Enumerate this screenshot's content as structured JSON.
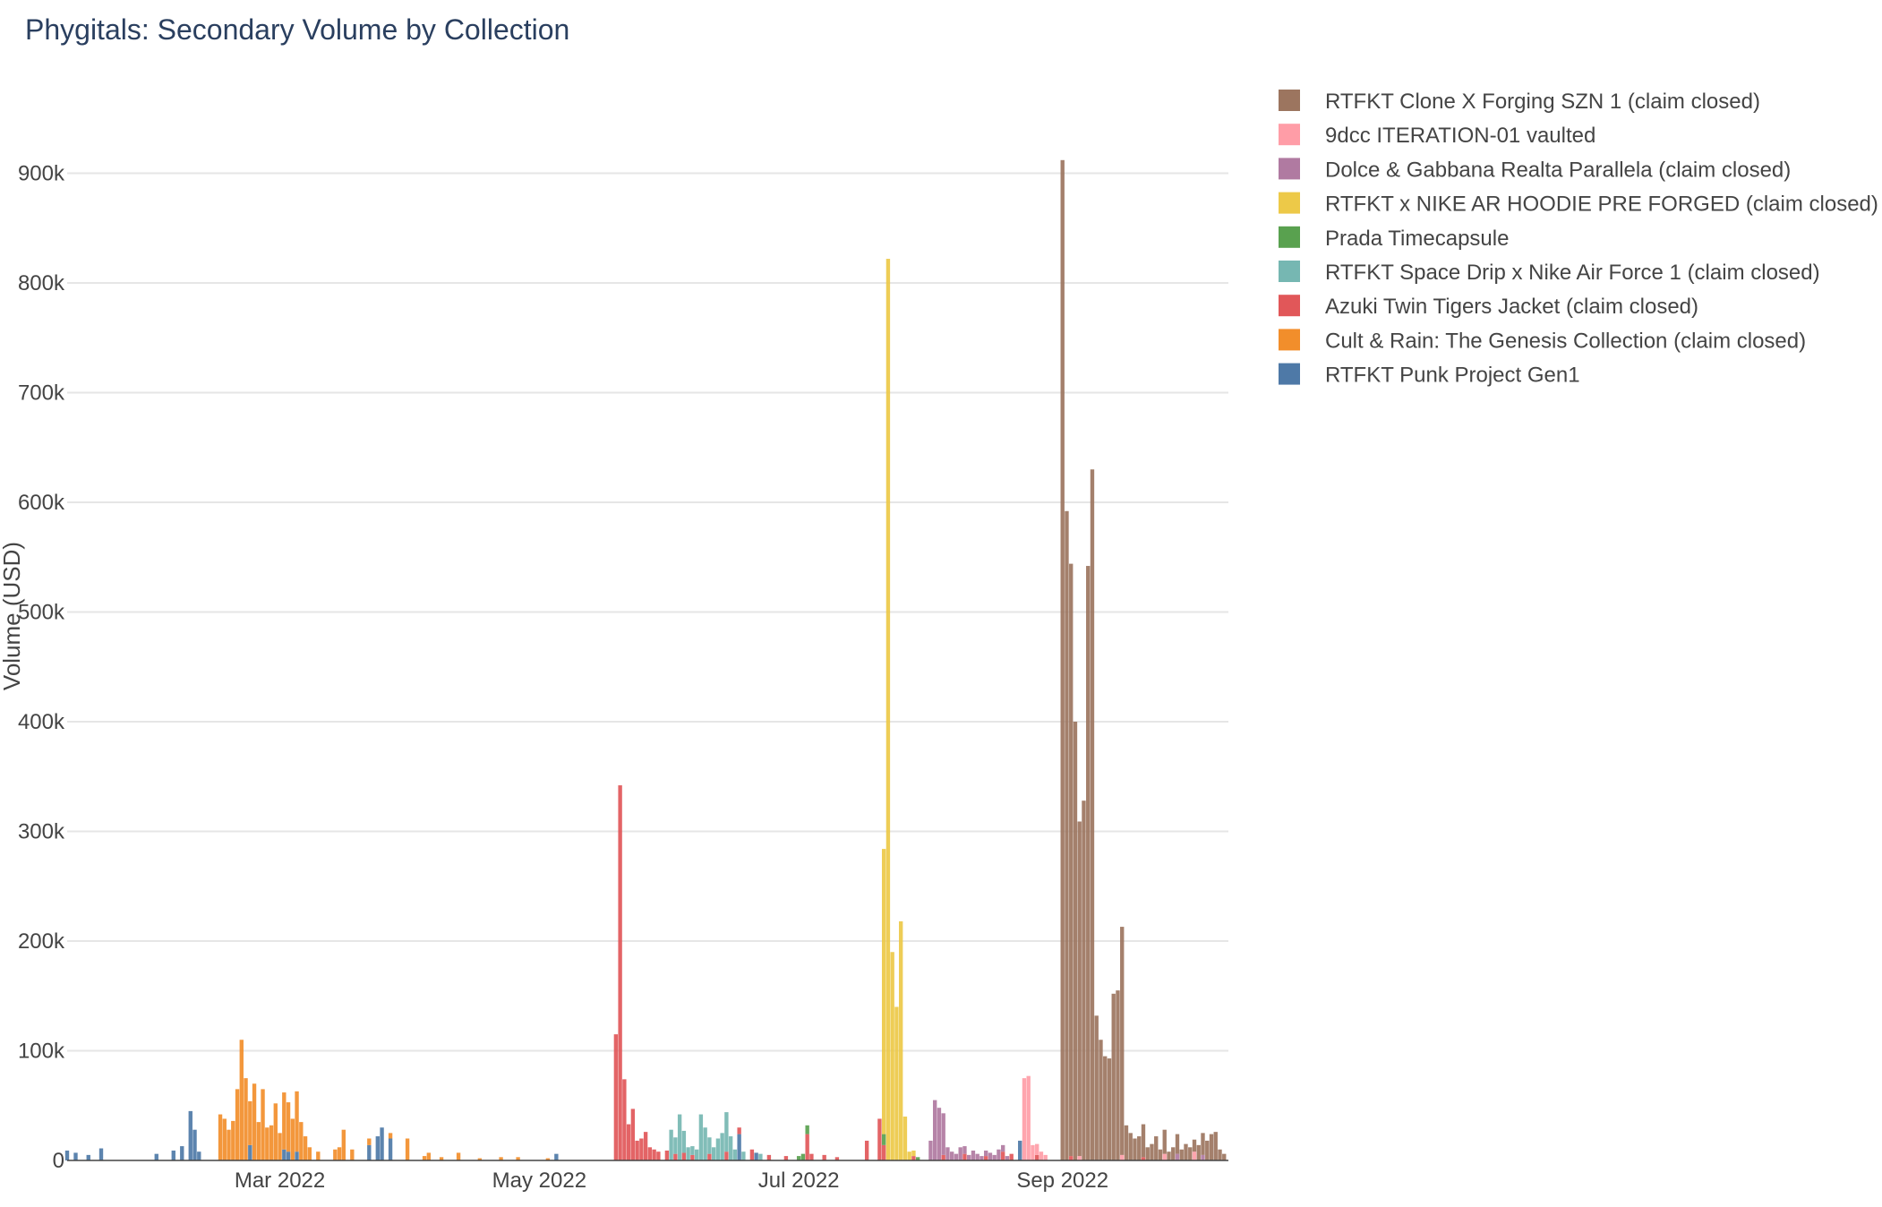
{
  "chart_data": {
    "type": "bar",
    "stacked": true,
    "title": "Phygitals: Secondary Volume by Collection",
    "ylabel": "Volume (USD)",
    "xlabel": "",
    "ylim": [
      0,
      960000
    ],
    "y_ticks": [
      {
        "value": 0,
        "label": "0"
      },
      {
        "value": 100000,
        "label": "100k"
      },
      {
        "value": 200000,
        "label": "200k"
      },
      {
        "value": 300000,
        "label": "300k"
      },
      {
        "value": 400000,
        "label": "400k"
      },
      {
        "value": 500000,
        "label": "500k"
      },
      {
        "value": 600000,
        "label": "600k"
      },
      {
        "value": 700000,
        "label": "700k"
      },
      {
        "value": 800000,
        "label": "800k"
      },
      {
        "value": 900000,
        "label": "900k"
      }
    ],
    "x_range": [
      "2022-01-10",
      "2022-10-10"
    ],
    "x_ticks": [
      {
        "value": "2022-03-01",
        "label": "Mar 2022"
      },
      {
        "value": "2022-05-01",
        "label": "May 2022"
      },
      {
        "value": "2022-07-01",
        "label": "Jul 2022"
      },
      {
        "value": "2022-09-01",
        "label": "Sep 2022"
      }
    ],
    "grid": true,
    "legend_position": "top-right",
    "series": [
      {
        "name": "RTFKT Clone X Forging SZN 1 (claim closed)",
        "color": "#9c755f",
        "points": [
          [
            "2022-09-01",
            912000
          ],
          [
            "2022-09-02",
            592000
          ],
          [
            "2022-09-03",
            540000
          ],
          [
            "2022-09-04",
            400000
          ],
          [
            "2022-09-05",
            305000
          ],
          [
            "2022-09-06",
            328000
          ],
          [
            "2022-09-07",
            542000
          ],
          [
            "2022-09-08",
            630000
          ],
          [
            "2022-09-09",
            132000
          ],
          [
            "2022-09-10",
            110000
          ],
          [
            "2022-09-11",
            95000
          ],
          [
            "2022-09-12",
            93000
          ],
          [
            "2022-09-13",
            152000
          ],
          [
            "2022-09-14",
            155000
          ],
          [
            "2022-09-15",
            208000
          ],
          [
            "2022-09-16",
            32000
          ],
          [
            "2022-09-17",
            25000
          ],
          [
            "2022-09-18",
            20000
          ],
          [
            "2022-09-19",
            22000
          ],
          [
            "2022-09-20",
            30000
          ],
          [
            "2022-09-21",
            12000
          ],
          [
            "2022-09-22",
            15000
          ],
          [
            "2022-09-23",
            22000
          ],
          [
            "2022-09-24",
            10000
          ],
          [
            "2022-09-25",
            22000
          ],
          [
            "2022-09-26",
            8000
          ],
          [
            "2022-09-27",
            12000
          ],
          [
            "2022-09-28",
            18000
          ],
          [
            "2022-09-29",
            10000
          ],
          [
            "2022-09-30",
            15000
          ],
          [
            "2022-10-01",
            12000
          ],
          [
            "2022-10-02",
            11000
          ],
          [
            "2022-10-03",
            14000
          ],
          [
            "2022-10-04",
            20000
          ],
          [
            "2022-10-05",
            18000
          ],
          [
            "2022-10-06",
            24000
          ],
          [
            "2022-10-07",
            26000
          ],
          [
            "2022-10-08",
            10000
          ],
          [
            "2022-10-09",
            6000
          ]
        ]
      },
      {
        "name": "9dcc ITERATION-01 vaulted",
        "color": "#ff9da7",
        "points": [
          [
            "2022-08-23",
            75000
          ],
          [
            "2022-08-24",
            77000
          ],
          [
            "2022-08-25",
            14000
          ],
          [
            "2022-08-26",
            10000
          ],
          [
            "2022-08-27",
            8000
          ],
          [
            "2022-08-28",
            5000
          ],
          [
            "2022-09-05",
            4000
          ],
          [
            "2022-09-15",
            5000
          ],
          [
            "2022-09-25",
            6000
          ],
          [
            "2022-10-02",
            8000
          ]
        ]
      },
      {
        "name": "Dolce & Gabbana Realta Parallela (claim closed)",
        "color": "#b07aa1",
        "points": [
          [
            "2022-08-01",
            18000
          ],
          [
            "2022-08-02",
            55000
          ],
          [
            "2022-08-03",
            48000
          ],
          [
            "2022-08-04",
            38000
          ],
          [
            "2022-08-05",
            12000
          ],
          [
            "2022-08-06",
            8000
          ],
          [
            "2022-08-07",
            6000
          ],
          [
            "2022-08-08",
            12000
          ],
          [
            "2022-08-09",
            7000
          ],
          [
            "2022-08-10",
            5000
          ],
          [
            "2022-08-11",
            9000
          ],
          [
            "2022-08-12",
            6000
          ],
          [
            "2022-08-13",
            4000
          ],
          [
            "2022-08-14",
            5000
          ],
          [
            "2022-08-15",
            7000
          ],
          [
            "2022-08-16",
            5000
          ],
          [
            "2022-08-17",
            10000
          ],
          [
            "2022-08-18",
            6000
          ],
          [
            "2022-08-19",
            4000
          ],
          [
            "2022-09-28",
            6000
          ],
          [
            "2022-10-04",
            5000
          ]
        ]
      },
      {
        "name": "RTFKT x NIKE AR HOODIE PRE FORGED (claim closed)",
        "color": "#edc948",
        "points": [
          [
            "2022-07-21",
            260000
          ],
          [
            "2022-07-22",
            822000
          ],
          [
            "2022-07-23",
            190000
          ],
          [
            "2022-07-24",
            140000
          ],
          [
            "2022-07-25",
            218000
          ],
          [
            "2022-07-26",
            40000
          ],
          [
            "2022-07-27",
            8000
          ],
          [
            "2022-07-28",
            5000
          ]
        ]
      },
      {
        "name": "Prada Timecapsule",
        "color": "#59a14f",
        "points": [
          [
            "2022-07-01",
            4000
          ],
          [
            "2022-07-02",
            6000
          ],
          [
            "2022-07-03",
            8000
          ],
          [
            "2022-07-21",
            10000
          ],
          [
            "2022-07-29",
            3000
          ]
        ]
      },
      {
        "name": "RTFKT Space Drip x Nike Air Force 1 (claim closed)",
        "color": "#76b7b2",
        "points": [
          [
            "2022-06-01",
            28000
          ],
          [
            "2022-06-02",
            15000
          ],
          [
            "2022-06-03",
            42000
          ],
          [
            "2022-06-04",
            20000
          ],
          [
            "2022-06-05",
            12000
          ],
          [
            "2022-06-06",
            8000
          ],
          [
            "2022-06-07",
            10000
          ],
          [
            "2022-06-08",
            42000
          ],
          [
            "2022-06-09",
            30000
          ],
          [
            "2022-06-10",
            15000
          ],
          [
            "2022-06-11",
            12000
          ],
          [
            "2022-06-12",
            20000
          ],
          [
            "2022-06-13",
            25000
          ],
          [
            "2022-06-14",
            36000
          ],
          [
            "2022-06-15",
            22000
          ],
          [
            "2022-06-16",
            10000
          ],
          [
            "2022-06-18",
            8000
          ],
          [
            "2022-06-22",
            6000
          ]
        ]
      },
      {
        "name": "Azuki Twin Tigers Jacket (claim closed)",
        "color": "#e15759",
        "points": [
          [
            "2022-05-19",
            115000
          ],
          [
            "2022-05-20",
            342000
          ],
          [
            "2022-05-21",
            74000
          ],
          [
            "2022-05-22",
            33000
          ],
          [
            "2022-05-23",
            47000
          ],
          [
            "2022-05-24",
            18000
          ],
          [
            "2022-05-25",
            20000
          ],
          [
            "2022-05-26",
            26000
          ],
          [
            "2022-05-27",
            12000
          ],
          [
            "2022-05-28",
            10000
          ],
          [
            "2022-05-29",
            8000
          ],
          [
            "2022-05-31",
            9000
          ],
          [
            "2022-06-02",
            6000
          ],
          [
            "2022-06-04",
            7000
          ],
          [
            "2022-06-06",
            5000
          ],
          [
            "2022-06-10",
            6000
          ],
          [
            "2022-06-14",
            8000
          ],
          [
            "2022-06-17",
            6000
          ],
          [
            "2022-06-20",
            10000
          ],
          [
            "2022-06-24",
            5000
          ],
          [
            "2022-06-28",
            4000
          ],
          [
            "2022-07-03",
            24000
          ],
          [
            "2022-07-04",
            6000
          ],
          [
            "2022-07-07",
            5000
          ],
          [
            "2022-07-10",
            3000
          ],
          [
            "2022-07-17",
            18000
          ],
          [
            "2022-07-20",
            38000
          ],
          [
            "2022-07-21",
            14000
          ],
          [
            "2022-07-28",
            4000
          ],
          [
            "2022-08-04",
            5000
          ],
          [
            "2022-08-09",
            6000
          ],
          [
            "2022-08-14",
            4000
          ],
          [
            "2022-08-18",
            8000
          ],
          [
            "2022-08-20",
            6000
          ],
          [
            "2022-08-26",
            5000
          ],
          [
            "2022-09-03",
            4000
          ],
          [
            "2022-09-20",
            3000
          ]
        ]
      },
      {
        "name": "Cult & Rain: The Genesis Collection (claim closed)",
        "color": "#f28e2b",
        "points": [
          [
            "2022-02-15",
            42000
          ],
          [
            "2022-02-16",
            38000
          ],
          [
            "2022-02-17",
            28000
          ],
          [
            "2022-02-18",
            36000
          ],
          [
            "2022-02-19",
            65000
          ],
          [
            "2022-02-20",
            110000
          ],
          [
            "2022-02-21",
            75000
          ],
          [
            "2022-02-22",
            40000
          ],
          [
            "2022-02-23",
            70000
          ],
          [
            "2022-02-24",
            35000
          ],
          [
            "2022-02-25",
            65000
          ],
          [
            "2022-02-26",
            30000
          ],
          [
            "2022-02-27",
            32000
          ],
          [
            "2022-02-28",
            52000
          ],
          [
            "2022-03-01",
            25000
          ],
          [
            "2022-03-02",
            52000
          ],
          [
            "2022-03-03",
            45000
          ],
          [
            "2022-03-04",
            38000
          ],
          [
            "2022-03-05",
            55000
          ],
          [
            "2022-03-06",
            35000
          ],
          [
            "2022-03-07",
            22000
          ],
          [
            "2022-03-08",
            12000
          ],
          [
            "2022-03-10",
            8000
          ],
          [
            "2022-03-14",
            10000
          ],
          [
            "2022-03-15",
            12000
          ],
          [
            "2022-03-16",
            28000
          ],
          [
            "2022-03-18",
            10000
          ],
          [
            "2022-03-22",
            6000
          ],
          [
            "2022-03-27",
            5000
          ],
          [
            "2022-03-31",
            20000
          ],
          [
            "2022-04-04",
            4000
          ],
          [
            "2022-04-05",
            7000
          ],
          [
            "2022-04-08",
            3000
          ],
          [
            "2022-04-12",
            7000
          ],
          [
            "2022-04-17",
            2000
          ],
          [
            "2022-04-22",
            3000
          ],
          [
            "2022-04-26",
            3000
          ],
          [
            "2022-05-03",
            2000
          ]
        ]
      },
      {
        "name": "RTFKT Punk Project Gen1",
        "color": "#4e79a7",
        "points": [
          [
            "2022-01-10",
            9000
          ],
          [
            "2022-01-12",
            7000
          ],
          [
            "2022-01-15",
            5000
          ],
          [
            "2022-01-18",
            11000
          ],
          [
            "2022-01-31",
            6000
          ],
          [
            "2022-02-04",
            9000
          ],
          [
            "2022-02-06",
            13000
          ],
          [
            "2022-02-08",
            45000
          ],
          [
            "2022-02-09",
            28000
          ],
          [
            "2022-02-10",
            8000
          ],
          [
            "2022-02-22",
            14000
          ],
          [
            "2022-03-02",
            10000
          ],
          [
            "2022-03-03",
            8000
          ],
          [
            "2022-03-05",
            8000
          ],
          [
            "2022-03-22",
            14000
          ],
          [
            "2022-03-24",
            22000
          ],
          [
            "2022-03-25",
            30000
          ],
          [
            "2022-03-27",
            20000
          ],
          [
            "2022-05-05",
            6000
          ],
          [
            "2022-06-17",
            24000
          ],
          [
            "2022-06-21",
            7000
          ],
          [
            "2022-08-22",
            18000
          ]
        ]
      }
    ]
  }
}
